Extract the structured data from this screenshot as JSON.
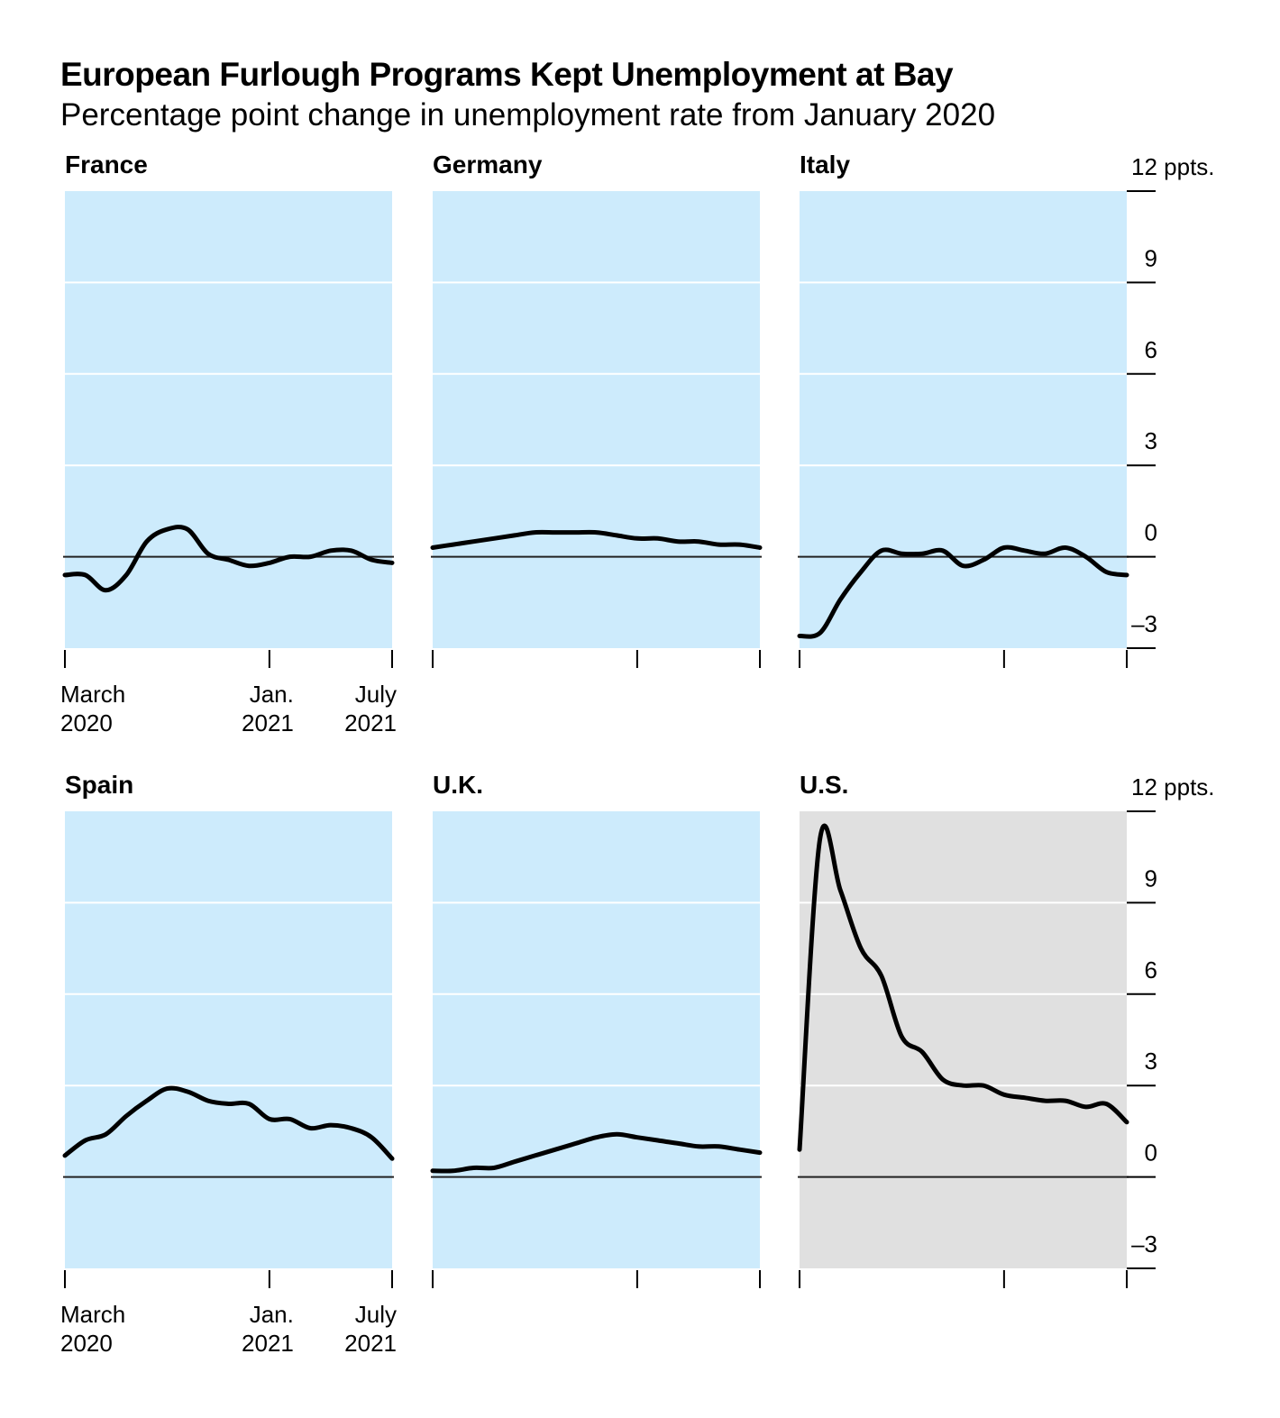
{
  "chart_data": {
    "type": "line",
    "title": "European Furlough Programs Kept Unemployment at Bay",
    "subtitle": "Percentage point change in unemployment rate from January 2020",
    "ylim": [
      -3,
      12
    ],
    "yticks": [
      {
        "value": 12,
        "label": "12 ppts."
      },
      {
        "value": 9,
        "label": "9"
      },
      {
        "value": 6,
        "label": "6"
      },
      {
        "value": 3,
        "label": "3"
      },
      {
        "value": 0,
        "label": "0"
      },
      {
        "value": -3,
        "label": "–3"
      }
    ],
    "x_range": [
      "March 2020",
      "July 2021"
    ],
    "x_months": [
      "2020-03",
      "2020-04",
      "2020-05",
      "2020-06",
      "2020-07",
      "2020-08",
      "2020-09",
      "2020-10",
      "2020-11",
      "2020-12",
      "2021-01",
      "2021-02",
      "2021-03",
      "2021-04",
      "2021-05",
      "2021-06",
      "2021-07"
    ],
    "xticks": [
      {
        "index": 0,
        "line1": "March",
        "line2": "2020"
      },
      {
        "index": 10,
        "line1": "Jan.",
        "line2": "2021"
      },
      {
        "index": 16,
        "line1": "July",
        "line2": "2021"
      }
    ],
    "colors": {
      "europe_bg": "#cdebfc",
      "us_bg": "#e0e0e0",
      "line": "#000000",
      "grid": "#ffffff"
    },
    "series": [
      {
        "name": "France",
        "highlight": false,
        "values": [
          -0.6,
          -0.6,
          -1.1,
          -0.6,
          0.5,
          0.9,
          0.9,
          0.1,
          -0.1,
          -0.3,
          -0.2,
          0.0,
          0.0,
          0.2,
          0.2,
          -0.1,
          -0.2
        ]
      },
      {
        "name": "Germany",
        "highlight": false,
        "values": [
          0.3,
          0.4,
          0.5,
          0.6,
          0.7,
          0.8,
          0.8,
          0.8,
          0.8,
          0.7,
          0.6,
          0.6,
          0.5,
          0.5,
          0.4,
          0.4,
          0.3
        ]
      },
      {
        "name": "Italy",
        "highlight": false,
        "values": [
          -2.6,
          -2.5,
          -1.4,
          -0.5,
          0.2,
          0.1,
          0.1,
          0.2,
          -0.3,
          -0.1,
          0.3,
          0.2,
          0.1,
          0.3,
          0.0,
          -0.5,
          -0.6
        ]
      },
      {
        "name": "Spain",
        "highlight": false,
        "values": [
          0.7,
          1.2,
          1.4,
          2.0,
          2.5,
          2.9,
          2.8,
          2.5,
          2.4,
          2.4,
          1.9,
          1.9,
          1.6,
          1.7,
          1.6,
          1.3,
          0.6
        ]
      },
      {
        "name": "U.K.",
        "highlight": false,
        "values": [
          0.2,
          0.2,
          0.3,
          0.3,
          0.5,
          0.7,
          0.9,
          1.1,
          1.3,
          1.4,
          1.3,
          1.2,
          1.1,
          1.0,
          1.0,
          0.9,
          0.8
        ]
      },
      {
        "name": "U.S.",
        "highlight": true,
        "values": [
          0.9,
          11.1,
          9.4,
          7.5,
          6.6,
          4.6,
          4.1,
          3.2,
          3.0,
          3.0,
          2.7,
          2.6,
          2.5,
          2.5,
          2.3,
          2.4,
          1.8
        ]
      }
    ]
  }
}
